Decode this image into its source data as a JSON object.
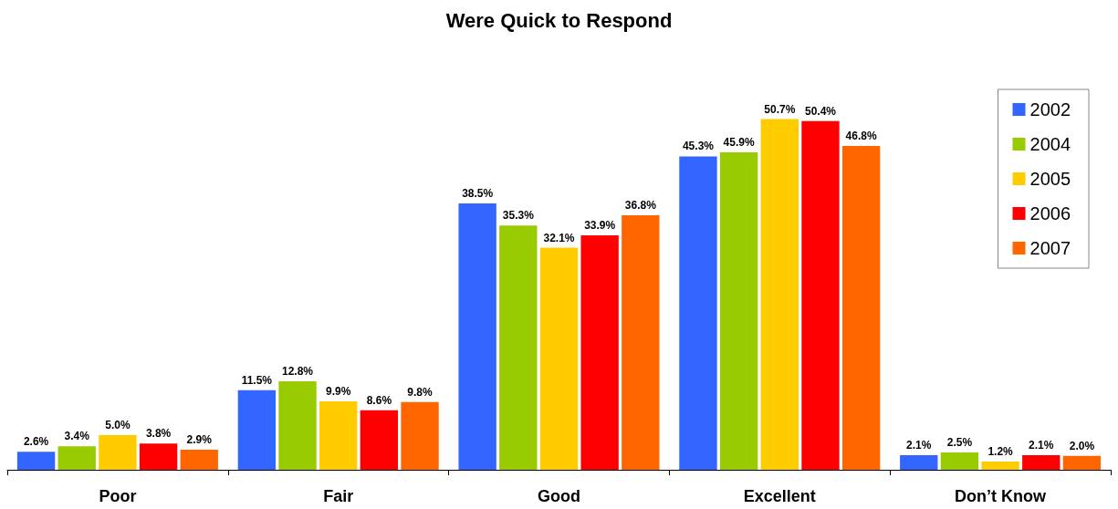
{
  "chart_data": {
    "type": "bar",
    "title": "Were Quick to Respond",
    "categories": [
      "Poor",
      "Fair",
      "Good",
      "Excellent",
      "Don’t Know"
    ],
    "legend": "right",
    "grid": false,
    "series": [
      {
        "name": "2002",
        "color": "#3366ff",
        "values": [
          2.6,
          11.5,
          38.5,
          45.3,
          2.1
        ],
        "value_labels": [
          "2.6%",
          "11.5%",
          "38.5%",
          "45.3%",
          "2.1%"
        ]
      },
      {
        "name": "2004",
        "color": "#99cc00",
        "values": [
          3.4,
          12.8,
          35.3,
          45.9,
          2.5
        ],
        "value_labels": [
          "3.4%",
          "12.8%",
          "35.3%",
          "45.9%",
          "2.5%"
        ]
      },
      {
        "name": "2005",
        "color": "#ffcc00",
        "values": [
          5.0,
          9.9,
          32.1,
          50.7,
          1.2
        ],
        "value_labels": [
          "5.0%",
          "9.9%",
          "32.1%",
          "50.7%",
          "1.2%"
        ]
      },
      {
        "name": "2006",
        "color": "#ff0000",
        "values": [
          3.8,
          8.6,
          33.9,
          50.4,
          2.1
        ],
        "value_labels": [
          "3.8%",
          "8.6%",
          "33.9%",
          "50.4%",
          "2.1%"
        ]
      },
      {
        "name": "2007",
        "color": "#ff6600",
        "values": [
          2.9,
          9.8,
          36.8,
          46.8,
          2.0
        ],
        "value_labels": [
          "2.9%",
          "9.8%",
          "36.8%",
          "46.8%",
          "2.0%"
        ]
      }
    ]
  }
}
